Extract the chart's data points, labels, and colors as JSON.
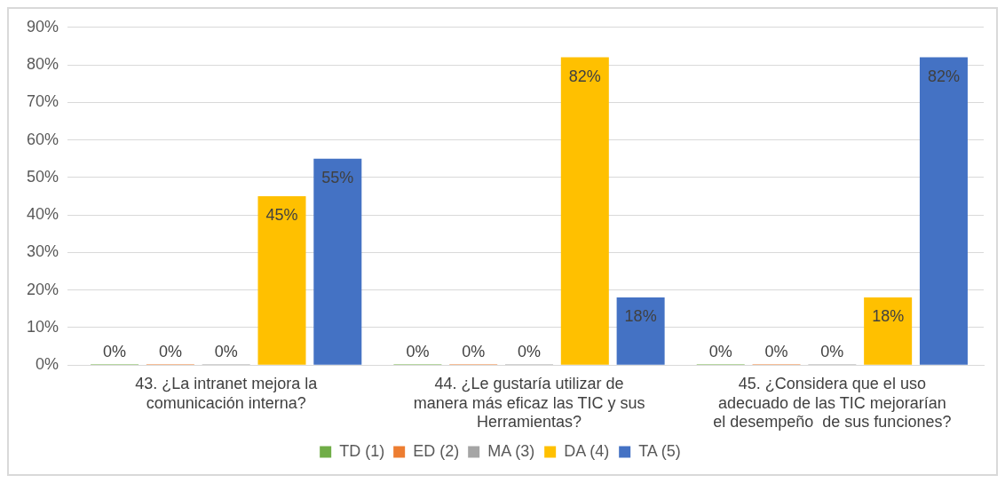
{
  "chart_data": {
    "type": "bar",
    "categories": [
      "43. ¿La intranet mejora la comunicación interna?",
      "44. ¿Le gustaría utilizar de manera más eficaz las TIC y sus Herramientas?",
      "45. ¿Considera que el uso adecuado de las TIC mejorarían el desempeño  de sus funciones?"
    ],
    "series": [
      {
        "name": "TD (1)",
        "color": "#70ad47",
        "values": [
          0,
          0,
          0
        ],
        "value_labels": [
          "0%",
          "0%",
          "0%"
        ]
      },
      {
        "name": "ED (2)",
        "color": "#ed7d31",
        "values": [
          0,
          0,
          0
        ],
        "value_labels": [
          "0%",
          "0%",
          "0%"
        ]
      },
      {
        "name": "MA (3)",
        "color": "#a5a5a5",
        "values": [
          0,
          0,
          0
        ],
        "value_labels": [
          "0%",
          "0%",
          "0%"
        ]
      },
      {
        "name": "DA (4)",
        "color": "#ffc000",
        "values": [
          45,
          82,
          18
        ],
        "value_labels": [
          "45%",
          "82%",
          "18%"
        ]
      },
      {
        "name": "TA (5)",
        "color": "#4472c4",
        "values": [
          55,
          18,
          82
        ],
        "value_labels": [
          "55%",
          "18%",
          "82%"
        ]
      }
    ],
    "ylim": [
      0,
      90
    ],
    "yticks": [
      {
        "value": 0,
        "label": "0%"
      },
      {
        "value": 10,
        "label": "10%"
      },
      {
        "value": 20,
        "label": "20%"
      },
      {
        "value": 30,
        "label": "30%"
      },
      {
        "value": 40,
        "label": "40%"
      },
      {
        "value": 50,
        "label": "50%"
      },
      {
        "value": 60,
        "label": "60%"
      },
      {
        "value": 70,
        "label": "70%"
      },
      {
        "value": 80,
        "label": "80%"
      },
      {
        "value": 90,
        "label": "90%"
      }
    ],
    "grid": "y",
    "legend": "bottom"
  }
}
